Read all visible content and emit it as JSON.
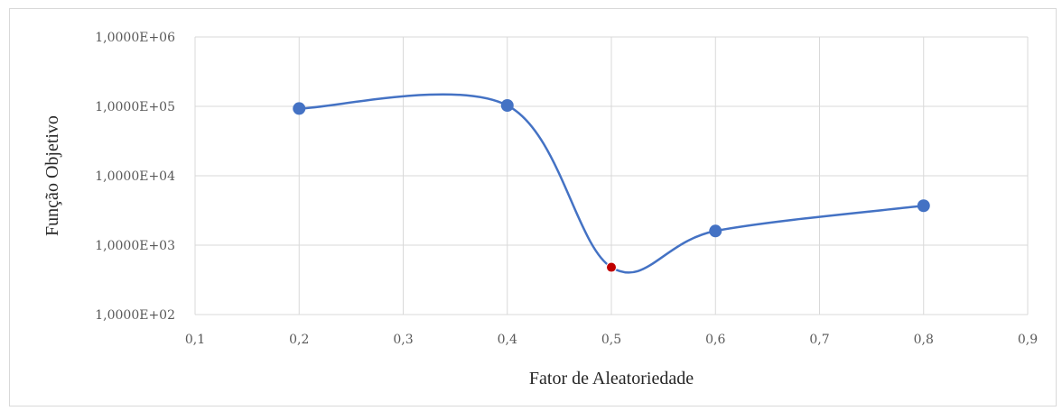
{
  "chart_data": {
    "type": "scatter",
    "title": "",
    "xlabel": "Fator de Aleatoriedade",
    "ylabel": "Função Objetivo",
    "xlim": [
      0.1,
      0.9
    ],
    "ylim": [
      100,
      1000000
    ],
    "yscale": "log",
    "grid": true,
    "legend": "none",
    "x_ticks": [
      "0,1",
      "0,2",
      "0,3",
      "0,4",
      "0,5",
      "0,6",
      "0,7",
      "0,8",
      "0,9"
    ],
    "x_tick_values": [
      0.1,
      0.2,
      0.3,
      0.4,
      0.5,
      0.6,
      0.7,
      0.8,
      0.9
    ],
    "y_ticks": [
      "1,0000E+02",
      "1,0000E+03",
      "1,0000E+04",
      "1,0000E+05",
      "1,0000E+06"
    ],
    "y_tick_values": [
      100,
      1000,
      10000,
      100000,
      1000000
    ],
    "series": [
      {
        "x": [
          0.2,
          0.4,
          0.5,
          0.6,
          0.8
        ],
        "y": [
          93000,
          103000,
          480,
          1600,
          3700
        ],
        "color": "#4472c4",
        "highlight_index": 2,
        "highlight_color": "#c00000"
      }
    ]
  }
}
